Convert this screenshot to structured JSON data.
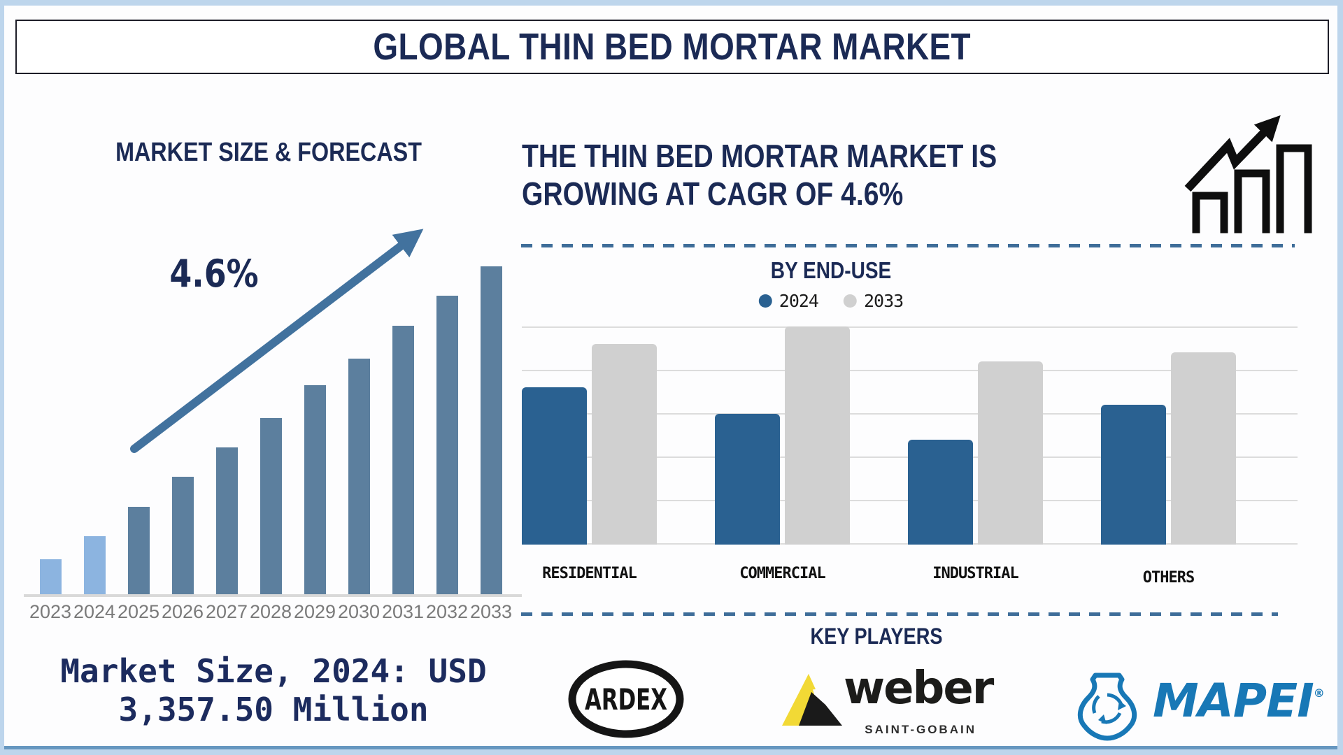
{
  "header": {
    "title": "GLOBAL THIN BED MORTAR MARKET"
  },
  "forecast_section": {
    "title": "MARKET SIZE & FORECAST",
    "cagr_label": "4.6%",
    "caption_line1": "Market Size, 2024: USD",
    "caption_line2": "3,357.50 Million"
  },
  "enduse_section": {
    "headline_line1": "THE THIN BED MORTAR MARKET IS",
    "headline_line2": "GROWING AT CAGR OF 4.6%",
    "title": "BY END-USE",
    "key_players_title": "KEY PLAYERS"
  },
  "key_players": [
    {
      "name": "ARDEX"
    },
    {
      "name": "weber",
      "subtitle": "SAINT-GOBAIN"
    },
    {
      "name": "MAPEI",
      "reg_mark": "®"
    }
  ],
  "icons": {
    "growth": "rising-bar-chart-with-arrow-icon",
    "trend_arrow": "diagonal-up-arrow"
  },
  "colors": {
    "heading": "#1b2a55",
    "frame": "#bdd5ec",
    "forecast_bar": "#5c7f9e",
    "forecast_bar_highlight": "#8cb4e0",
    "arrow": "#42729e",
    "dashed_line": "#3e6d99",
    "axis": "#d9d9d9",
    "year_label": "#7a7a7a",
    "enduse_2024": "#2a6191",
    "enduse_2033": "#d0d0d0",
    "mapei_blue": "#1878b6",
    "weber_yellow": "#f2d935",
    "logo_black": "#1a1a1a"
  },
  "chart_data": [
    {
      "type": "bar",
      "title": "MARKET SIZE & FORECAST",
      "categories": [
        "2023",
        "2024",
        "2025",
        "2026",
        "2027",
        "2028",
        "2029",
        "2030",
        "2031",
        "2032",
        "2033"
      ],
      "values_relative_pct": [
        11,
        18,
        27,
        36,
        45,
        54,
        64,
        72,
        82,
        91,
        100
      ],
      "yaxis": "no axis shown (decorative relative scale, % of tallest 2033 bar)",
      "bar_color": "#5c7f9e",
      "highlight": {
        "years": [
          "2023",
          "2024"
        ],
        "color": "#8cb4e0"
      },
      "annotations": [
        "4.6%",
        "Market Size, 2024: USD 3,357.50 Million"
      ],
      "grid": false
    },
    {
      "type": "bar",
      "title": "BY END-USE",
      "categories": [
        "RESIDENTIAL",
        "COMMERCIAL",
        "INDUSTRIAL",
        "OTHERS"
      ],
      "series": [
        {
          "name": "2024",
          "color": "#2a6191",
          "values": [
            72,
            60,
            48,
            64
          ]
        },
        {
          "name": "2033",
          "color": "#d0d0d0",
          "values": [
            92,
            100,
            84,
            88
          ]
        }
      ],
      "ylim": [
        0,
        100
      ],
      "gridlines_every": 20,
      "grid": true,
      "legend_position": "top",
      "units": "relative index (no tick labels shown in figure)"
    }
  ]
}
